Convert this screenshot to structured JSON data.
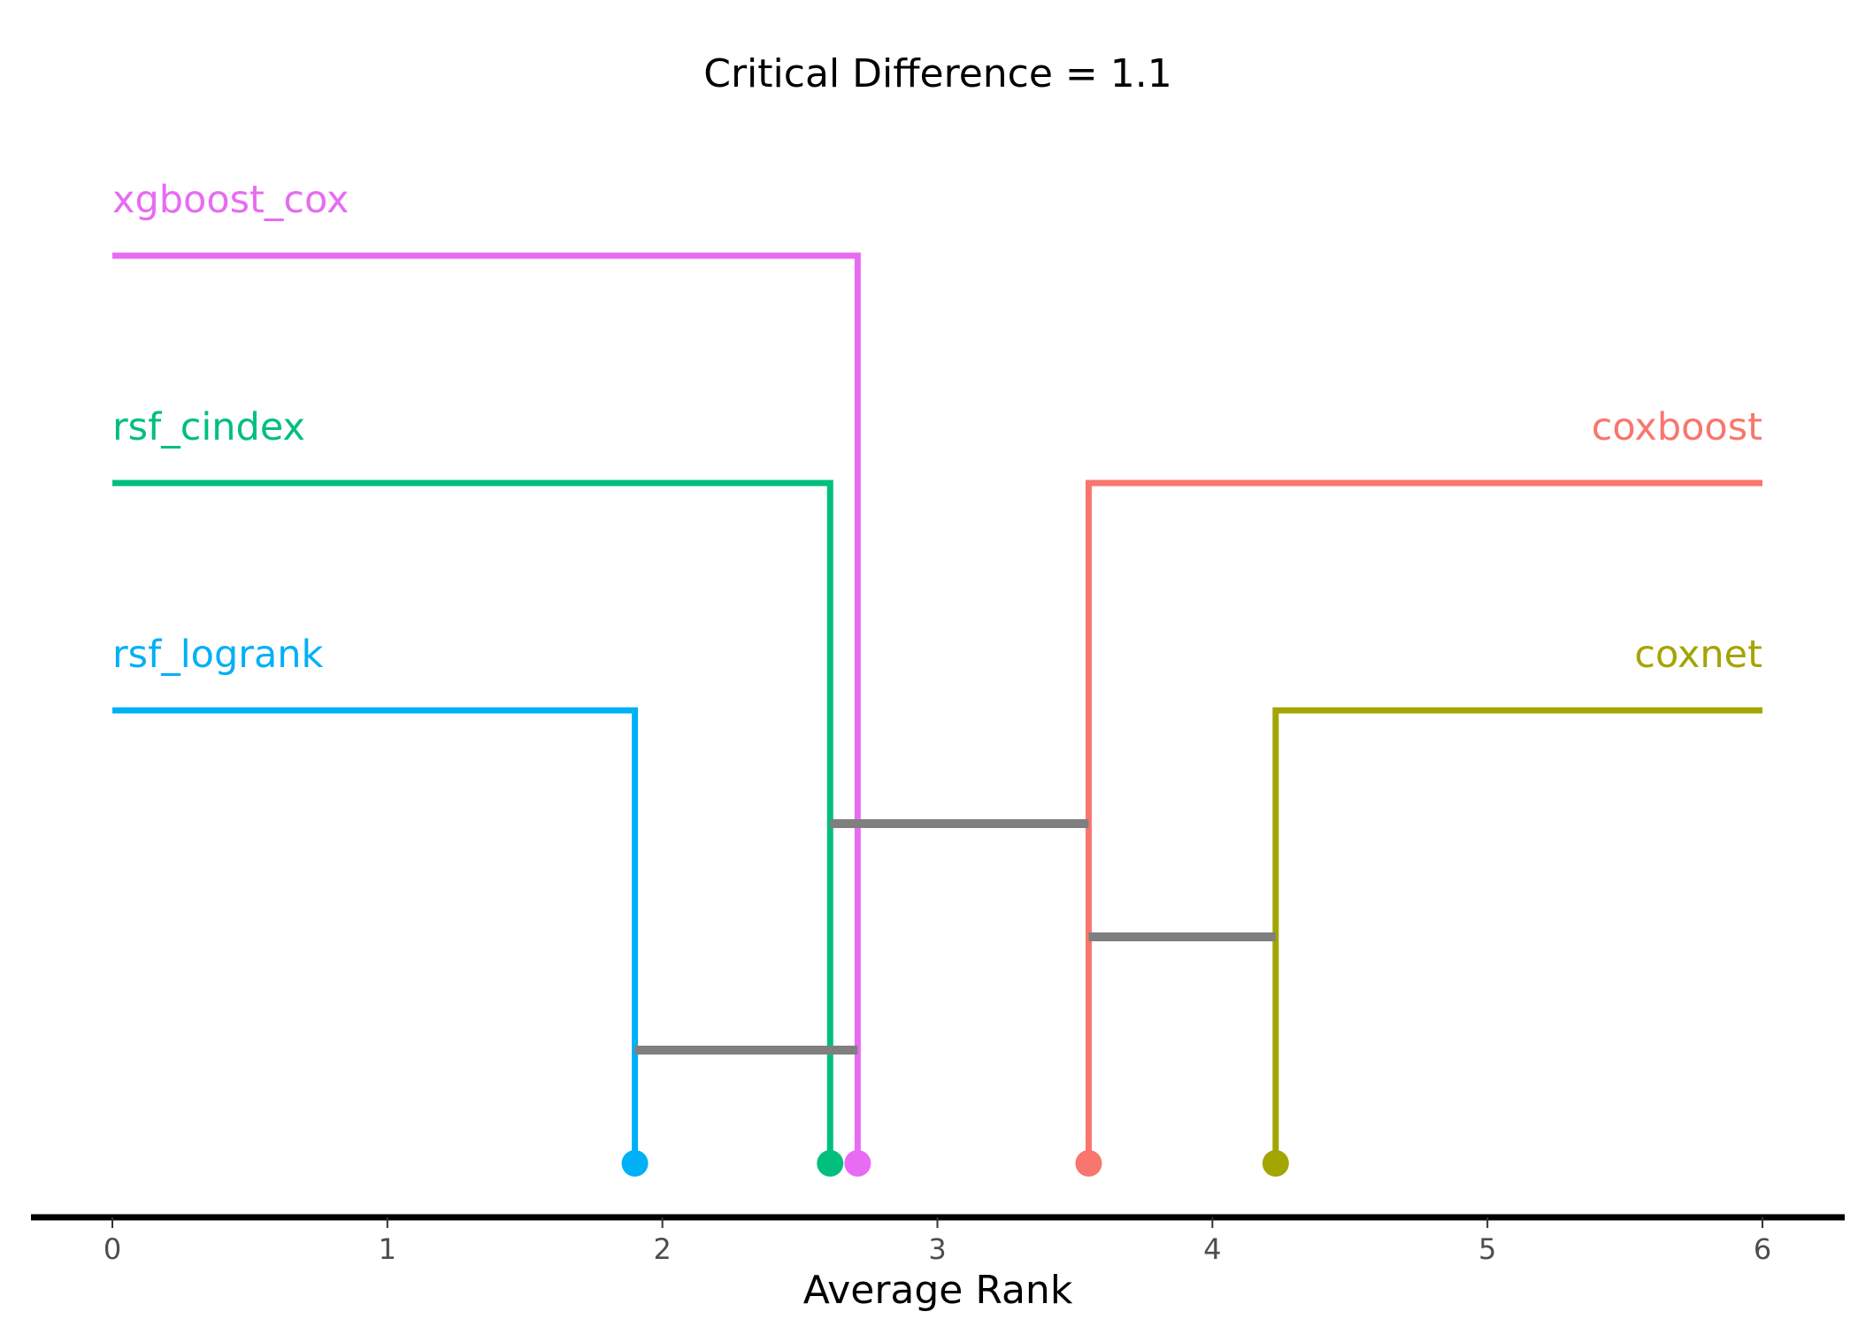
{
  "chart_data": {
    "type": "critical-difference",
    "title": "Critical Difference = 1.1",
    "xlabel": "Average Rank",
    "xlim": [
      -0.3,
      6.3
    ],
    "ticks": [
      0,
      1,
      2,
      3,
      4,
      5,
      6
    ],
    "critical_difference": 1.1,
    "methods": [
      {
        "name": "rsf_logrank",
        "rank": 1.9,
        "side": "left",
        "color": "#00b0f6"
      },
      {
        "name": "rsf_cindex",
        "rank": 2.61,
        "side": "left",
        "color": "#00bf7d"
      },
      {
        "name": "xgboost_cox",
        "rank": 2.71,
        "side": "left",
        "color": "#e76bf3"
      },
      {
        "name": "coxboost",
        "rank": 3.55,
        "side": "right",
        "color": "#f8766d"
      },
      {
        "name": "coxnet",
        "rank": 4.23,
        "side": "right",
        "color": "#a3a500"
      }
    ],
    "cliques": [
      {
        "from": 2.61,
        "to": 3.55
      },
      {
        "from": 3.55,
        "to": 4.23
      },
      {
        "from": 1.9,
        "to": 2.71
      }
    ],
    "clique_color": "#7f7f7f",
    "axis_color": "#000000"
  }
}
